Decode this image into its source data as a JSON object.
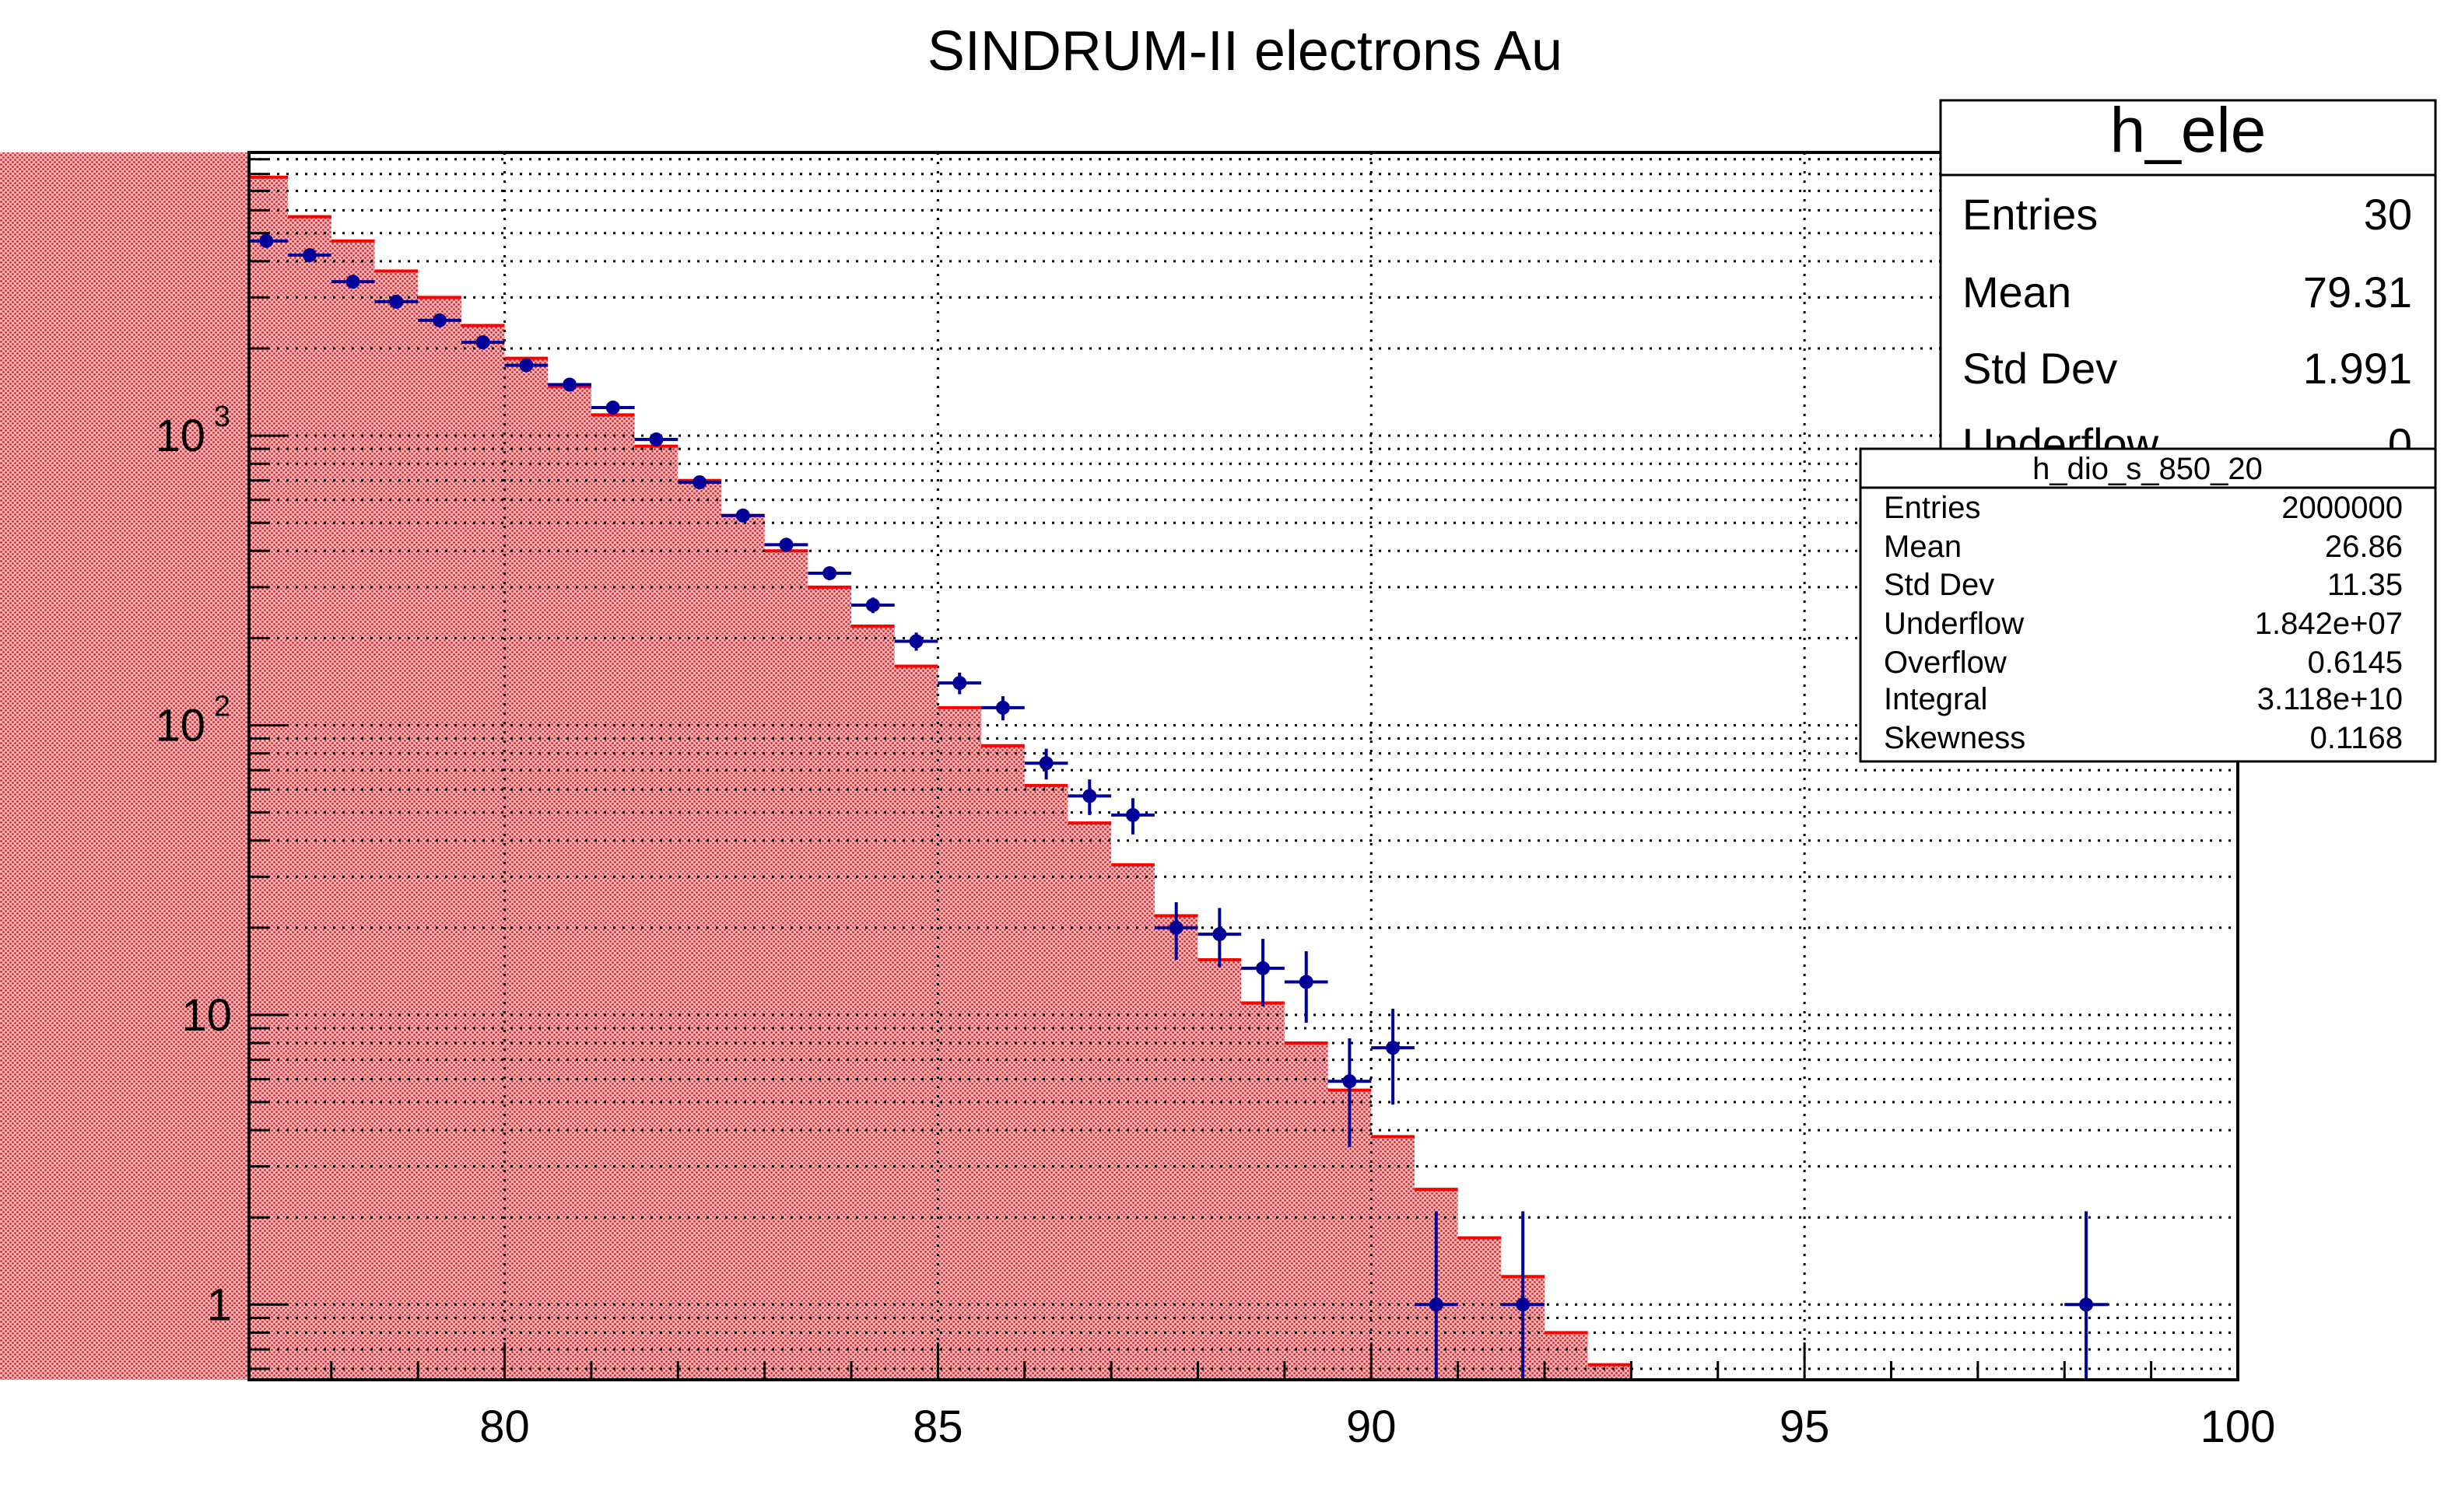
{
  "chart_data": {
    "type": "histogram",
    "title": "SINDRUM-II electrons Au",
    "xlabel": "",
    "ylabel": "",
    "xlim": [
      77.05,
      100
    ],
    "ylim": [
      0.55,
      9500
    ],
    "yscale": "log",
    "grid": true,
    "x_ticks": [
      80,
      85,
      90,
      95,
      100
    ],
    "x_tick_labels": [
      "80",
      "85",
      "90",
      "95",
      "100"
    ],
    "y_tick_labels": [
      {
        "value": 1,
        "base": "1",
        "exp": ""
      },
      {
        "value": 10,
        "base": "10",
        "exp": ""
      },
      {
        "value": 100,
        "base": "10",
        "exp": "2"
      },
      {
        "value": 1000,
        "base": "10",
        "exp": "3"
      }
    ],
    "series": [
      {
        "name": "h_dio_s_850_20",
        "kind": "filled-step",
        "color": "#ff0000",
        "fill_color": "#e8292f",
        "bin_edges": [
          77.0,
          77.5,
          78.0,
          78.5,
          79.0,
          79.5,
          80.0,
          80.5,
          81.0,
          81.5,
          82.0,
          82.5,
          83.0,
          83.5,
          84.0,
          84.5,
          85.0,
          85.5,
          86.0,
          86.5,
          87.0,
          87.5,
          88.0,
          88.5,
          89.0,
          89.5,
          90.0,
          90.5,
          91.0,
          91.5,
          92.0,
          92.5,
          93.0
        ],
        "values": [
          7800,
          5700,
          4700,
          3700,
          3000,
          2400,
          1850,
          1480,
          1180,
          920,
          700,
          530,
          400,
          300,
          220,
          160,
          115,
          85,
          62,
          46,
          33,
          22,
          15.5,
          11,
          8,
          5.5,
          3.8,
          2.5,
          1.7,
          1.25,
          0.8,
          0.62
        ]
      },
      {
        "name": "h_ele",
        "kind": "points-with-errors",
        "color": "#000099",
        "x": [
          77.25,
          77.75,
          78.25,
          78.75,
          79.25,
          79.75,
          80.25,
          80.75,
          81.25,
          81.75,
          82.25,
          82.75,
          83.25,
          83.75,
          84.25,
          84.75,
          85.25,
          85.75,
          86.25,
          86.75,
          87.25,
          87.75,
          88.25,
          88.75,
          89.25,
          89.75,
          90.25,
          90.75,
          91.75,
          98.25
        ],
        "y": [
          4700,
          4200,
          3400,
          2900,
          2500,
          2100,
          1750,
          1500,
          1250,
          970,
          690,
          530,
          420,
          335,
          260,
          195,
          140,
          115,
          74,
          57,
          49,
          20,
          19,
          14.5,
          13,
          5.9,
          7.7,
          1,
          1,
          1
        ],
        "yerr_low": [
          70,
          65,
          60,
          55,
          50,
          45,
          42,
          39,
          35,
          31,
          26,
          23,
          21,
          18,
          16,
          14,
          12,
          11,
          9,
          8,
          7,
          4.5,
          4.4,
          3.8,
          3.6,
          2.4,
          2.8,
          0.8,
          0.8,
          0.8
        ],
        "yerr_high": [
          70,
          65,
          60,
          55,
          50,
          45,
          42,
          39,
          35,
          31,
          26,
          23,
          21,
          18,
          16,
          14,
          12,
          11,
          9,
          8,
          7,
          4.5,
          4.4,
          3.8,
          3.6,
          2.4,
          2.8,
          1.1,
          1.1,
          1.1
        ]
      }
    ]
  },
  "stats_ele": {
    "title": "h_ele",
    "rows": [
      {
        "label": "Entries",
        "value": "30"
      },
      {
        "label": "Mean",
        "value": "79.31"
      },
      {
        "label": "Std Dev",
        "value": "1.991"
      },
      {
        "label": "Underflow",
        "value": "0"
      }
    ]
  },
  "stats_dio": {
    "title": "h_dio_s_850_20",
    "rows": [
      {
        "label": "Entries",
        "value": "2000000"
      },
      {
        "label": "Mean",
        "value": "26.86"
      },
      {
        "label": "Std Dev",
        "value": "11.35"
      },
      {
        "label": "Underflow",
        "value": "1.842e+07"
      },
      {
        "label": "Overflow",
        "value": "0.6145"
      },
      {
        "label": "Integral",
        "value": "3.118e+10"
      },
      {
        "label": "Skewness",
        "value": "0.1168"
      }
    ]
  }
}
